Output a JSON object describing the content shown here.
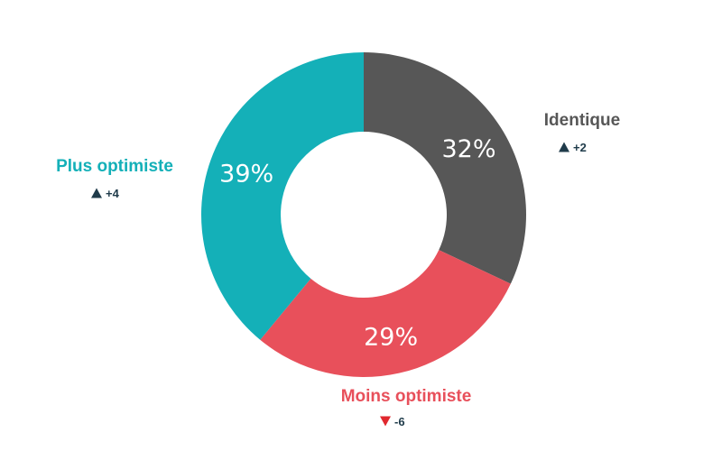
{
  "chart_data": {
    "type": "pie",
    "donut": true,
    "legend": "none",
    "slices": [
      {
        "category": "Identique",
        "value": 32,
        "value_label": "32%",
        "change": "+2",
        "change_direction": "up",
        "color": "#575757",
        "label_color": "#575757",
        "change_color": "#1f3b4a"
      },
      {
        "category": "Moins optimiste",
        "value": 29,
        "value_label": "29%",
        "change": "-6",
        "change_direction": "down",
        "color": "#e8505b",
        "label_color": "#e8505b",
        "change_color": "#1f3b4a"
      },
      {
        "category": "Plus optimiste",
        "value": 39,
        "value_label": "39%",
        "change": "+4",
        "change_direction": "up",
        "color": "#14b0b8",
        "label_color": "#14b0b8",
        "change_color": "#1f3b4a"
      }
    ],
    "arrow_up_color": "#1f3b4a",
    "arrow_down_color": "#e0282e"
  }
}
